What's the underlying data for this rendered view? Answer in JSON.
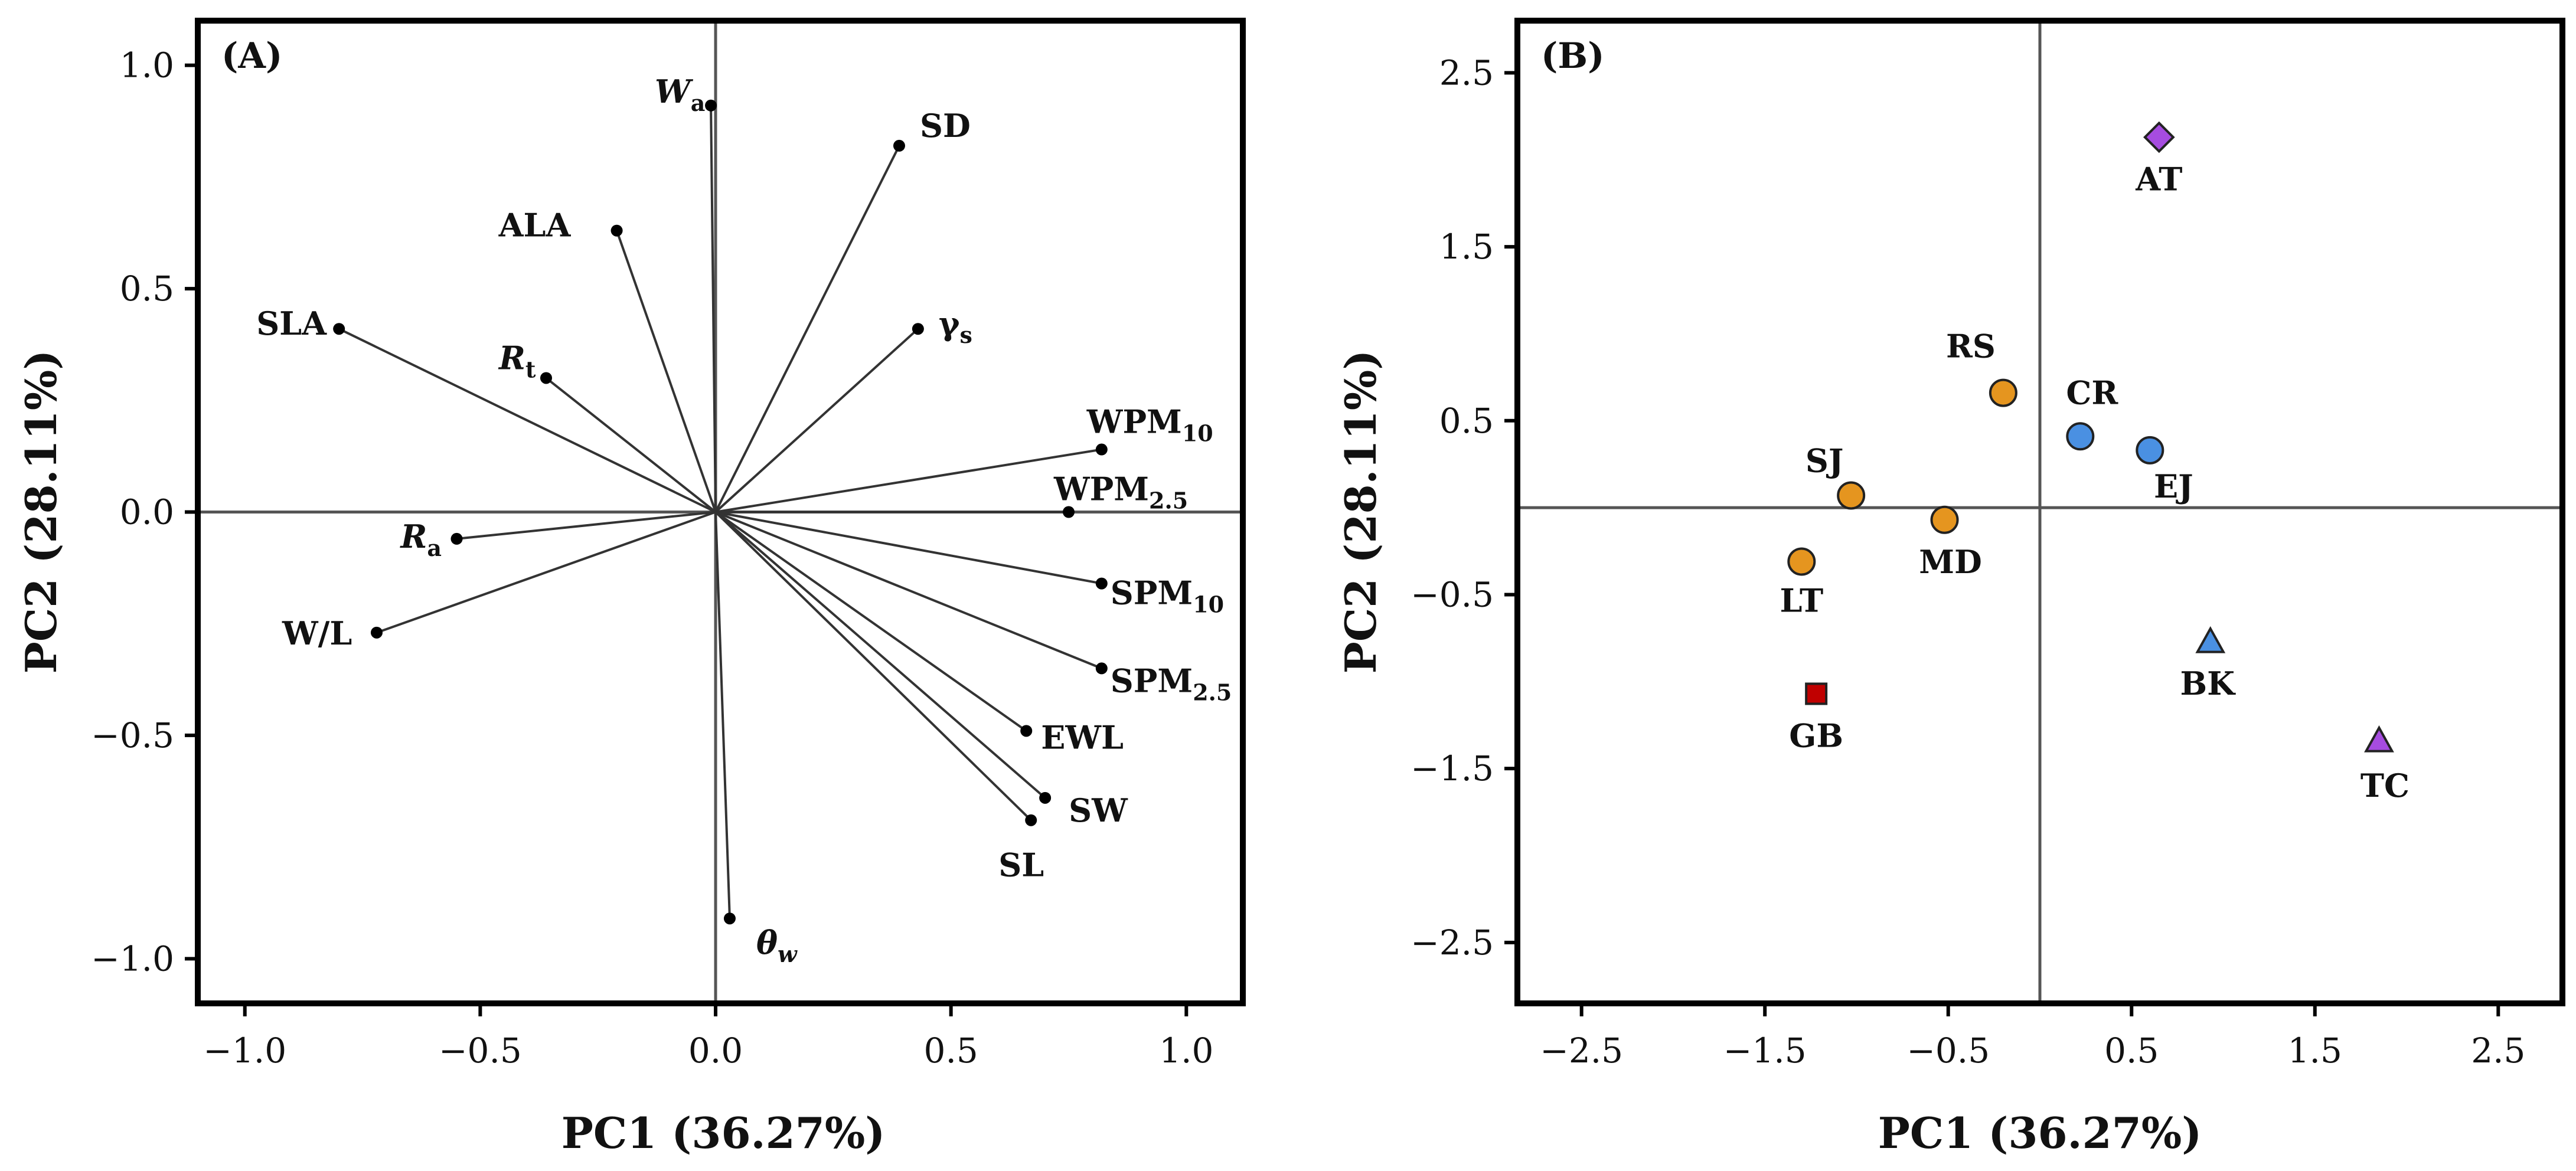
{
  "chart_data": [
    {
      "type": "scatter",
      "subtype": "biplot-loadings",
      "panel_label": "(A)",
      "xlabel": "PC1 (36.27%)",
      "ylabel": "PC2 (28.11%)",
      "xlim": [
        -1.1,
        1.12
      ],
      "ylim": [
        -1.1,
        1.1
      ],
      "xticks": [
        -1.0,
        -0.5,
        0.0,
        0.5,
        1.0
      ],
      "xtick_labels": [
        "−1.0",
        "−0.5",
        "0.0",
        "0.5",
        "1.0"
      ],
      "yticks": [
        1.0,
        0.5,
        0.0,
        -0.5,
        -1.0
      ],
      "ytick_labels": [
        "1.0",
        "0.5",
        "0.0",
        "−0.5",
        "−1.0"
      ],
      "zero_lines": true,
      "vectors": [
        {
          "label": "W",
          "sub": "a",
          "italic": true,
          "x": -0.01,
          "y": 0.91
        },
        {
          "label": "SD",
          "sub": "",
          "italic": false,
          "x": 0.39,
          "y": 0.82
        },
        {
          "label": "ALA",
          "sub": "",
          "italic": false,
          "x": -0.21,
          "y": 0.63
        },
        {
          "label": "SLA",
          "sub": "",
          "italic": false,
          "x": -0.8,
          "y": 0.41
        },
        {
          "label": "R",
          "sub": "t",
          "italic": true,
          "x": -0.36,
          "y": 0.3
        },
        {
          "label": "γ",
          "sub": "s",
          "italic": false,
          "x": 0.43,
          "y": 0.41
        },
        {
          "label": "WPM",
          "sub": "10",
          "italic": false,
          "x": 0.82,
          "y": 0.14
        },
        {
          "label": "WPM",
          "sub": "2.5",
          "italic": false,
          "x": 0.75,
          "y": 0.0
        },
        {
          "label": "R",
          "sub": "a",
          "italic": true,
          "x": -0.55,
          "y": -0.06
        },
        {
          "label": "SPM",
          "sub": "10",
          "italic": false,
          "x": 0.82,
          "y": -0.16
        },
        {
          "label": "W/L",
          "sub": "",
          "italic": false,
          "x": -0.72,
          "y": -0.27
        },
        {
          "label": "SPM",
          "sub": "2.5",
          "italic": false,
          "x": 0.82,
          "y": -0.35
        },
        {
          "label": "EWL",
          "sub": "",
          "italic": false,
          "x": 0.66,
          "y": -0.49
        },
        {
          "label": "SW",
          "sub": "",
          "italic": false,
          "x": 0.7,
          "y": -0.64
        },
        {
          "label": "SL",
          "sub": "",
          "italic": false,
          "x": 0.67,
          "y": -0.69
        },
        {
          "label": "θ",
          "sub": "w",
          "italic": true,
          "x": 0.03,
          "y": -0.91
        }
      ]
    },
    {
      "type": "scatter",
      "subtype": "biplot-scores",
      "panel_label": "(B)",
      "xlabel": "PC1 (36.27%)",
      "ylabel": "PC2 (28.11%)",
      "xlim": [
        -2.85,
        2.85
      ],
      "ylim": [
        -2.85,
        2.8
      ],
      "xticks": [
        -2.5,
        -1.5,
        -0.5,
        0.5,
        1.5,
        2.5
      ],
      "xtick_labels": [
        "−2.5",
        "−1.5",
        "−0.5",
        "0.5",
        "1.5",
        "2.5"
      ],
      "yticks": [
        2.5,
        1.5,
        0.5,
        -0.5,
        -1.5,
        -2.5
      ],
      "ytick_labels": [
        "2.5",
        "1.5",
        "0.5",
        "−0.5",
        "−1.5",
        "−2.5"
      ],
      "zero_lines": true,
      "points": [
        {
          "label": "AT",
          "x": 0.65,
          "y": 2.13,
          "marker": "diamond",
          "color": "#A64CE0"
        },
        {
          "label": "RS",
          "x": -0.2,
          "y": 0.66,
          "marker": "circle",
          "color": "#E5951F"
        },
        {
          "label": "CR",
          "x": 0.22,
          "y": 0.41,
          "marker": "circle",
          "color": "#4A90E2"
        },
        {
          "label": "EJ",
          "x": 0.6,
          "y": 0.33,
          "marker": "circle",
          "color": "#4A90E2"
        },
        {
          "label": "SJ",
          "x": -1.03,
          "y": 0.07,
          "marker": "circle",
          "color": "#E5951F"
        },
        {
          "label": "MD",
          "x": -0.52,
          "y": -0.07,
          "marker": "circle",
          "color": "#E5951F"
        },
        {
          "label": "LT",
          "x": -1.3,
          "y": -0.31,
          "marker": "circle",
          "color": "#E5951F"
        },
        {
          "label": "BK",
          "x": 0.93,
          "y": -0.77,
          "marker": "triangle",
          "color": "#4A90E2"
        },
        {
          "label": "GB",
          "x": -1.22,
          "y": -1.07,
          "marker": "square",
          "color": "#C00000"
        },
        {
          "label": "TC",
          "x": 1.85,
          "y": -1.34,
          "marker": "triangle",
          "color": "#A64CE0"
        }
      ]
    }
  ]
}
